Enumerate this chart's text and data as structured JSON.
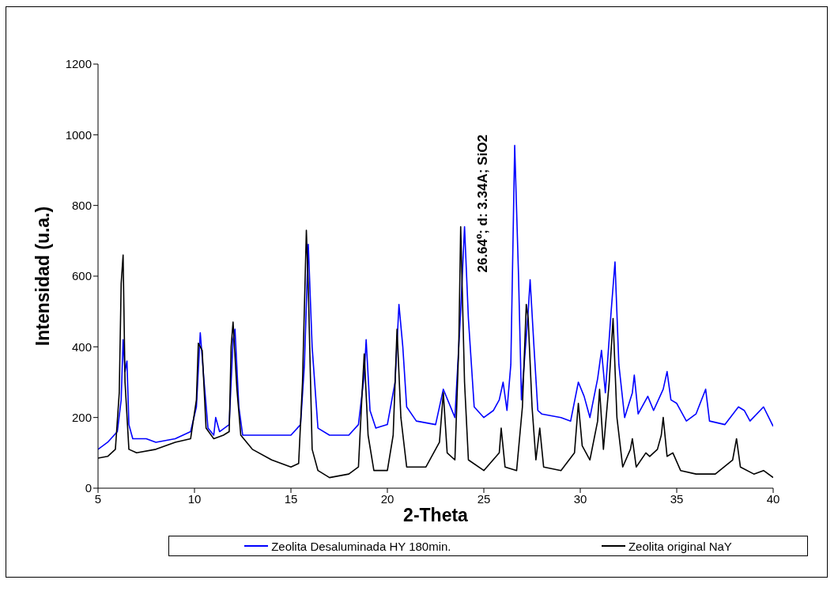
{
  "chart_data": {
    "type": "line",
    "xlabel": "2-Theta",
    "ylabel": "Intensidad (u.a.)",
    "xlim": [
      5,
      40
    ],
    "xticks": [
      5,
      10,
      15,
      20,
      25,
      30,
      35,
      40
    ],
    "ylim": [
      0,
      1200
    ],
    "yticks": [
      0,
      200,
      400,
      600,
      800,
      1000,
      1200
    ],
    "grid": false,
    "legend": "bottom",
    "marker": "none",
    "line_style": "solid",
    "annotations": [
      {
        "text": "26.64º; d: 3.34A; SiO2",
        "x": 26.64,
        "y": 610
      }
    ],
    "series": [
      {
        "name": "Zeolita Desaluminada HY 180min.",
        "color": "#0000ff",
        "x": [
          5,
          5.5,
          6.0,
          6.2,
          6.3,
          6.4,
          6.5,
          6.6,
          6.8,
          7.5,
          8,
          9,
          9.8,
          10.1,
          10.3,
          10.5,
          10.7,
          11,
          11.1,
          11.3,
          11.8,
          12.0,
          12.1,
          12.3,
          12.5,
          13,
          14,
          15,
          15.5,
          15.7,
          15.9,
          16.1,
          16.4,
          17,
          18,
          18.5,
          18.8,
          18.9,
          19.1,
          19.4,
          20,
          20.4,
          20.6,
          20.8,
          21.0,
          21.5,
          22.5,
          22.9,
          23.2,
          23.5,
          23.8,
          24.0,
          24.2,
          24.5,
          25,
          25.5,
          25.8,
          26.0,
          26.2,
          26.4,
          26.6,
          26.8,
          26.95,
          27.3,
          27.4,
          27.6,
          27.8,
          28,
          29,
          29.5,
          29.9,
          30.2,
          30.5,
          30.9,
          31.1,
          31.3,
          31.6,
          31.8,
          32.0,
          32.3,
          32.7,
          32.8,
          33.0,
          33.5,
          33.8,
          34.3,
          34.5,
          34.7,
          35,
          35.5,
          36,
          36.5,
          36.7,
          37.5,
          38.2,
          38.5,
          38.8,
          39.5,
          40
        ],
        "values": [
          110,
          130,
          160,
          250,
          420,
          330,
          360,
          180,
          140,
          140,
          130,
          140,
          160,
          230,
          440,
          300,
          170,
          150,
          200,
          160,
          180,
          420,
          450,
          230,
          150,
          150,
          150,
          150,
          180,
          350,
          690,
          400,
          170,
          150,
          150,
          180,
          320,
          420,
          220,
          170,
          180,
          300,
          520,
          400,
          230,
          190,
          180,
          280,
          240,
          200,
          500,
          740,
          480,
          230,
          200,
          220,
          250,
          300,
          220,
          350,
          970,
          600,
          250,
          500,
          590,
          400,
          220,
          210,
          200,
          190,
          300,
          260,
          200,
          310,
          390,
          270,
          500,
          640,
          350,
          200,
          270,
          320,
          210,
          260,
          220,
          280,
          330,
          250,
          240,
          190,
          210,
          280,
          190,
          180,
          230,
          220,
          190,
          230,
          175
        ]
      },
      {
        "name": "Zeolita original NaY",
        "color": "#000000",
        "x": [
          5,
          5.5,
          5.9,
          6.1,
          6.2,
          6.3,
          6.4,
          6.6,
          7,
          8,
          9,
          9.8,
          10.1,
          10.2,
          10.4,
          10.6,
          11,
          11.5,
          11.8,
          11.9,
          12.0,
          12.2,
          12.4,
          13,
          14,
          15,
          15.4,
          15.6,
          15.8,
          15.9,
          16.1,
          16.4,
          17,
          18,
          18.5,
          18.7,
          18.8,
          19.0,
          19.3,
          20,
          20.3,
          20.5,
          20.7,
          21.0,
          22,
          22.7,
          22.9,
          23.1,
          23.5,
          23.7,
          23.8,
          24.0,
          24.2,
          25,
          25.8,
          25.9,
          26.1,
          26.7,
          27.0,
          27.2,
          27.3,
          27.5,
          27.7,
          27.9,
          28.1,
          29,
          29.7,
          29.9,
          30.1,
          30.5,
          30.9,
          31.0,
          31.2,
          31.5,
          31.7,
          31.9,
          32.2,
          32.6,
          32.7,
          32.9,
          33.4,
          33.6,
          34.0,
          34.2,
          34.3,
          34.5,
          34.8,
          35.2,
          36,
          37,
          37.9,
          38.1,
          38.3,
          39,
          39.5,
          40
        ],
        "values": [
          85,
          90,
          110,
          270,
          580,
          660,
          300,
          110,
          100,
          110,
          130,
          140,
          250,
          410,
          390,
          170,
          140,
          150,
          160,
          400,
          470,
          280,
          150,
          110,
          80,
          60,
          70,
          300,
          730,
          570,
          110,
          50,
          30,
          40,
          60,
          280,
          380,
          150,
          50,
          50,
          150,
          450,
          200,
          60,
          60,
          130,
          270,
          100,
          80,
          400,
          740,
          300,
          80,
          50,
          100,
          170,
          60,
          50,
          230,
          520,
          480,
          230,
          80,
          170,
          60,
          50,
          100,
          240,
          120,
          80,
          190,
          280,
          110,
          300,
          480,
          200,
          60,
          110,
          140,
          60,
          100,
          90,
          110,
          150,
          200,
          90,
          100,
          50,
          40,
          40,
          80,
          140,
          60,
          40,
          50,
          30
        ]
      }
    ]
  }
}
